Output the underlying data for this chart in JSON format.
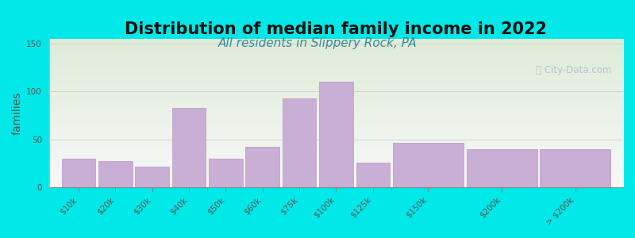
{
  "title": "Distribution of median family income in 2022",
  "subtitle": "All residents in Slippery Rock, PA",
  "ylabel": "families",
  "categories": [
    "$10k",
    "$20k",
    "$30k",
    "$40k",
    "$50k",
    "$60k",
    "$75k",
    "$100k",
    "$125k",
    "$150k",
    "$200k",
    "> $200k"
  ],
  "values": [
    30,
    27,
    22,
    83,
    30,
    42,
    93,
    110,
    26,
    46,
    40,
    40
  ],
  "bar_widths": [
    1,
    1,
    1,
    1,
    1,
    1,
    1,
    1,
    1,
    2,
    2,
    2
  ],
  "bar_left_edges": [
    0,
    1,
    2,
    3,
    4,
    5,
    6,
    7,
    8,
    9,
    11,
    13
  ],
  "bar_color": "#c9aed5",
  "bar_edge_color": "#b898c8",
  "background_outer": "#00e8e8",
  "background_plot_top_color": "#deecd8",
  "background_plot_bottom_color": "#f8f8f8",
  "title_fontsize": 15,
  "subtitle_fontsize": 11,
  "subtitle_color": "#3a8898",
  "ylabel_fontsize": 10,
  "tick_label_fontsize": 7.5,
  "yticks": [
    0,
    50,
    100,
    150
  ],
  "ylim": [
    0,
    155
  ],
  "watermark_text": "ⓘ City-Data.com",
  "watermark_color": "#aabbc8"
}
